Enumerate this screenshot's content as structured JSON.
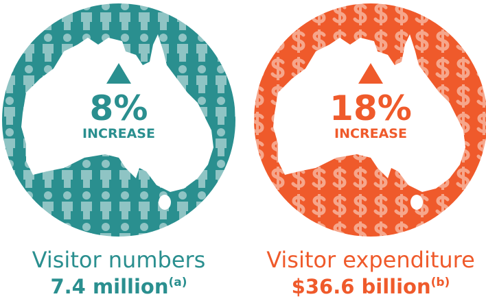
{
  "panels": [
    {
      "change": "8%",
      "change_label": "INCREASE",
      "title": "Visitor numbers",
      "value": "7.4 million",
      "footnote": "(a)"
    },
    {
      "change": "18%",
      "change_label": "INCREASE",
      "title": "Visitor expenditure",
      "value": "$36.6 billion",
      "footnote": "(b)"
    }
  ]
}
